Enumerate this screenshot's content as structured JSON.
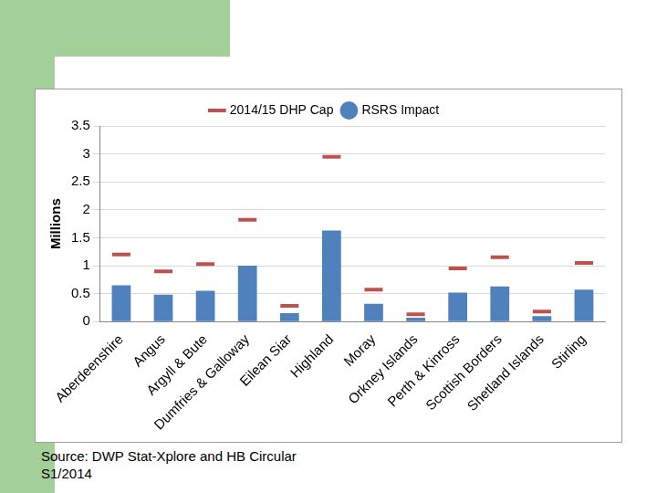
{
  "chart_data": {
    "type": "bar",
    "y_label": "Millions",
    "source": "Source: DWP Stat-Xplore and HB Circular S1/2014",
    "categories": [
      "Aberdeenshire",
      "Angus",
      "Argyll & Bute",
      "Dumfries & Galloway",
      "Eilean Siar",
      "Highland",
      "Moray",
      "Orkney Islands",
      "Perth & Kinross",
      "Scottish Borders",
      "Shetland Islands",
      "Stirling"
    ],
    "series": [
      {
        "name": "RSRS Impact",
        "type": "bar",
        "color": "#4f81bd",
        "values": [
          0.65,
          0.48,
          0.55,
          1.0,
          0.15,
          1.63,
          0.32,
          0.07,
          0.52,
          0.63,
          0.1,
          0.57
        ]
      },
      {
        "name": "2014/15 DHP Cap",
        "type": "line",
        "marker": "line",
        "line_style": "none",
        "color": "#c0504d",
        "values": [
          1.2,
          0.9,
          1.03,
          1.82,
          0.28,
          2.95,
          0.57,
          0.13,
          0.95,
          1.15,
          0.18,
          1.05
        ]
      }
    ],
    "ylim": [
      0,
      3.5
    ],
    "yticks": [
      0,
      0.5,
      1,
      1.5,
      2,
      2.5,
      3,
      3.5
    ],
    "grid": true,
    "legend": "top"
  }
}
